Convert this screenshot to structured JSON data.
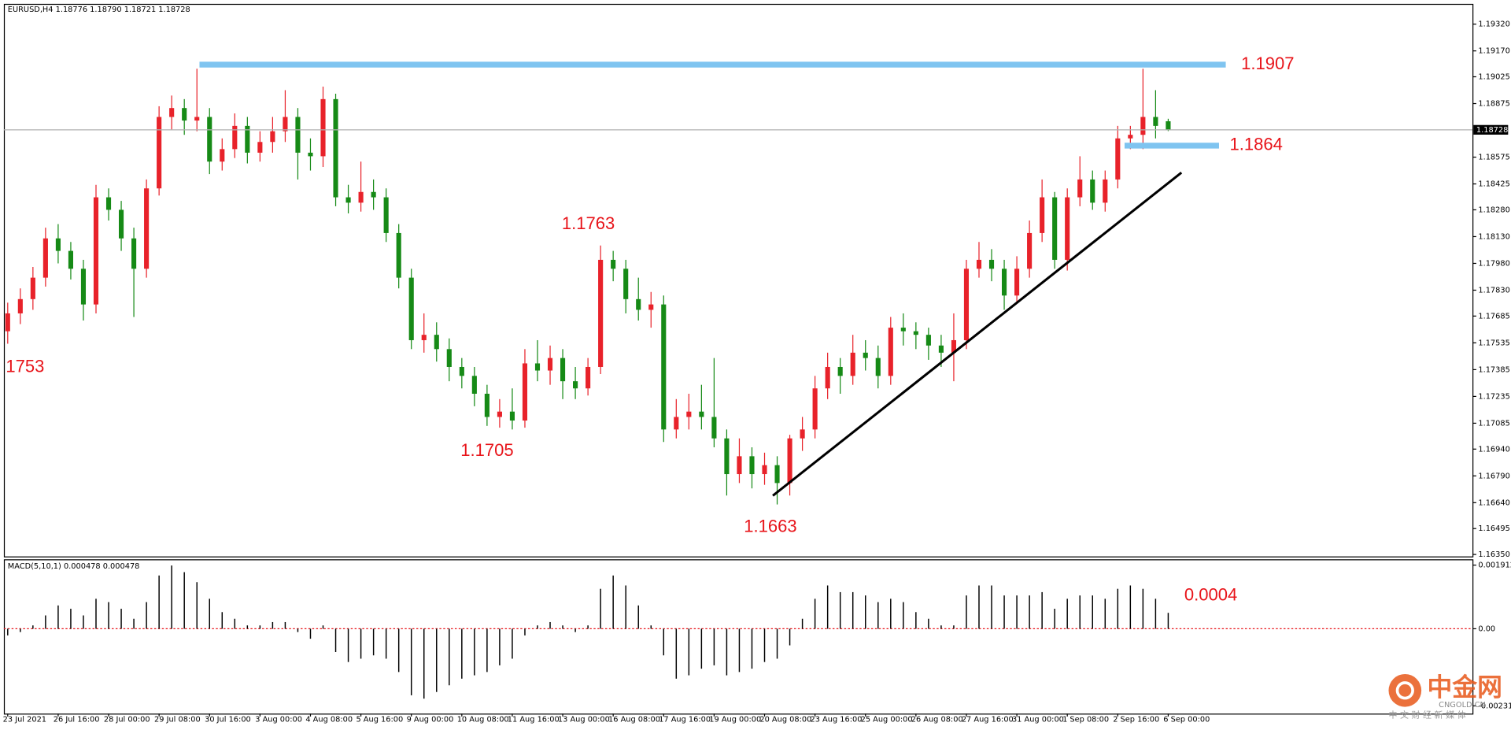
{
  "chart_data": [
    {
      "type": "candlestick",
      "title": "EURUSD,H4  1.18776 1.18790 1.18721 1.18728",
      "up_color": "#e8222a",
      "down_color": "#168a16",
      "categories": [
        "23 Jul 2021",
        null,
        null,
        null,
        "26 Jul 16:00",
        null,
        null,
        null,
        "28 Jul 00:00",
        null,
        null,
        null,
        "29 Jul 08:00",
        null,
        null,
        null,
        "30 Jul 16:00",
        null,
        null,
        null,
        "3 Aug 00:00",
        null,
        null,
        null,
        "4 Aug 08:00",
        null,
        null,
        null,
        "5 Aug 16:00",
        null,
        null,
        null,
        "9 Aug 00:00",
        null,
        null,
        null,
        "10 Aug 08:00",
        null,
        null,
        null,
        "11 Aug 16:00",
        null,
        null,
        null,
        "13 Aug 00:00",
        null,
        null,
        null,
        "16 Aug 08:00",
        null,
        null,
        null,
        "17 Aug 16:00",
        null,
        null,
        null,
        "19 Aug 00:00",
        null,
        null,
        null,
        "20 Aug 08:00",
        null,
        null,
        null,
        "23 Aug 16:00",
        null,
        null,
        null,
        "25 Aug 00:00",
        null,
        null,
        null,
        "26 Aug 08:00",
        null,
        null,
        null,
        "27 Aug 16:00",
        null,
        null,
        null,
        "31 Aug 00:00",
        null,
        null,
        null,
        "1 Sep 08:00",
        null,
        null,
        null,
        "2 Sep 16:00",
        null,
        null,
        null,
        "6 Sep 00:00"
      ],
      "open": [
        1.176,
        1.177,
        1.1778,
        1.179,
        1.1812,
        1.1805,
        1.1795,
        1.1775,
        1.1835,
        1.1828,
        1.1812,
        1.1795,
        1.184,
        1.188,
        1.1885,
        1.1878,
        1.188,
        1.1855,
        1.1862,
        1.1875,
        1.186,
        1.1866,
        1.1872,
        1.188,
        1.186,
        1.1858,
        1.189,
        1.1835,
        1.1832,
        1.1838,
        1.1835,
        1.1815,
        1.179,
        1.1755,
        1.1758,
        1.175,
        1.174,
        1.1735,
        1.1725,
        1.1712,
        1.1715,
        1.171,
        1.1742,
        1.1738,
        1.1745,
        1.1732,
        1.1728,
        1.174,
        1.18,
        1.1795,
        1.1778,
        1.1772,
        1.1775,
        1.1705,
        1.1712,
        1.1715,
        1.1712,
        1.17,
        1.168,
        1.169,
        1.168,
        1.1685,
        1.1675,
        1.17,
        1.1705,
        1.1728,
        1.174,
        1.1735,
        1.1748,
        1.1745,
        1.1735,
        1.1762,
        1.176,
        1.1758,
        1.1752,
        1.1748,
        1.1755,
        1.1795,
        1.18,
        1.1795,
        1.178,
        1.1795,
        1.1815,
        1.1835,
        1.18,
        1.1835,
        1.1845,
        1.1832,
        1.1845,
        1.1868,
        1.187,
        1.188,
        1.18776
      ],
      "high": [
        1.1776,
        1.1784,
        1.1796,
        1.1818,
        1.182,
        1.181,
        1.18,
        1.1842,
        1.184,
        1.1833,
        1.1818,
        1.1845,
        1.1886,
        1.1892,
        1.189,
        1.1907,
        1.1885,
        1.1868,
        1.1882,
        1.188,
        1.1872,
        1.188,
        1.1895,
        1.1885,
        1.1868,
        1.1897,
        1.1893,
        1.1842,
        1.1855,
        1.1845,
        1.184,
        1.182,
        1.1795,
        1.177,
        1.1765,
        1.1756,
        1.1745,
        1.174,
        1.173,
        1.1722,
        1.1728,
        1.175,
        1.1755,
        1.1752,
        1.175,
        1.174,
        1.1745,
        1.1808,
        1.1805,
        1.18,
        1.179,
        1.1782,
        1.178,
        1.1722,
        1.1725,
        1.173,
        1.1745,
        1.1705,
        1.17,
        1.1695,
        1.1692,
        1.169,
        1.1702,
        1.1712,
        1.1735,
        1.1748,
        1.1745,
        1.1758,
        1.1755,
        1.1752,
        1.1768,
        1.177,
        1.1765,
        1.1762,
        1.1758,
        1.177,
        1.18,
        1.181,
        1.1806,
        1.18,
        1.1802,
        1.1822,
        1.1845,
        1.1838,
        1.184,
        1.1858,
        1.185,
        1.185,
        1.1875,
        1.1875,
        1.1907,
        1.1895,
        1.1879
      ],
      "low": [
        1.1753,
        1.1764,
        1.1772,
        1.1785,
        1.1798,
        1.1789,
        1.1766,
        1.177,
        1.1822,
        1.1805,
        1.1768,
        1.179,
        1.1836,
        1.1873,
        1.187,
        1.1872,
        1.1848,
        1.185,
        1.1857,
        1.1854,
        1.1855,
        1.186,
        1.1866,
        1.1845,
        1.185,
        1.1852,
        1.183,
        1.1826,
        1.1827,
        1.1828,
        1.181,
        1.1784,
        1.175,
        1.1748,
        1.1743,
        1.1732,
        1.1728,
        1.1718,
        1.1707,
        1.1706,
        1.1705,
        1.1706,
        1.1732,
        1.173,
        1.1722,
        1.1722,
        1.1724,
        1.1736,
        1.1788,
        1.177,
        1.1766,
        1.1762,
        1.1698,
        1.17,
        1.1705,
        1.1705,
        1.1695,
        1.1668,
        1.1675,
        1.1672,
        1.1674,
        1.1663,
        1.1668,
        1.1693,
        1.17,
        1.1722,
        1.1725,
        1.173,
        1.1738,
        1.1728,
        1.173,
        1.1752,
        1.175,
        1.1744,
        1.174,
        1.1732,
        1.175,
        1.179,
        1.1788,
        1.1772,
        1.1776,
        1.179,
        1.181,
        1.1795,
        1.1794,
        1.183,
        1.1828,
        1.1827,
        1.184,
        1.1862,
        1.1862,
        1.1868,
        1.18721
      ],
      "close": [
        1.177,
        1.1778,
        1.179,
        1.1812,
        1.1805,
        1.1795,
        1.1775,
        1.1835,
        1.1828,
        1.1812,
        1.1795,
        1.184,
        1.188,
        1.1885,
        1.1878,
        1.188,
        1.1855,
        1.1862,
        1.1875,
        1.186,
        1.1866,
        1.1872,
        1.188,
        1.186,
        1.1858,
        1.189,
        1.1835,
        1.1832,
        1.1838,
        1.1835,
        1.1815,
        1.179,
        1.1755,
        1.1758,
        1.175,
        1.174,
        1.1735,
        1.1725,
        1.1712,
        1.1715,
        1.171,
        1.1742,
        1.1738,
        1.1745,
        1.1732,
        1.1728,
        1.174,
        1.18,
        1.1795,
        1.1778,
        1.1772,
        1.1775,
        1.1705,
        1.1712,
        1.1715,
        1.1712,
        1.17,
        1.168,
        1.169,
        1.168,
        1.1685,
        1.1675,
        1.17,
        1.1705,
        1.1728,
        1.174,
        1.1735,
        1.1748,
        1.1745,
        1.1735,
        1.1762,
        1.176,
        1.1758,
        1.1752,
        1.1748,
        1.1755,
        1.1795,
        1.18,
        1.1795,
        1.178,
        1.1795,
        1.1815,
        1.1835,
        1.18,
        1.1835,
        1.1845,
        1.1832,
        1.1845,
        1.1868,
        1.187,
        1.188,
        1.1875,
        1.18728
      ],
      "ylim": [
        1.16339,
        1.19428
      ],
      "yticks": [
        {
          "value": 1.1932,
          "label": "1.19320"
        },
        {
          "value": 1.1917,
          "label": "1.19170"
        },
        1.19025,
        1.18875,
        1.18575,
        1.18425,
        {
          "value": 1.1828,
          "label": "1.18280"
        },
        {
          "value": 1.1813,
          "label": "1.18130"
        },
        {
          "value": 1.1798,
          "label": "1.17980"
        },
        {
          "value": 1.1783,
          "label": "1.17830"
        },
        1.17685,
        1.17535,
        1.17385,
        1.17235,
        1.17085,
        {
          "value": 1.1694,
          "label": "1.16940"
        },
        {
          "value": 1.1679,
          "label": "1.16790"
        },
        {
          "value": 1.1664,
          "label": "1.16640"
        },
        1.16495,
        {
          "value": 1.1635,
          "label": "1.16350"
        }
      ],
      "current_price": 1.18728,
      "annotations": [
        "1.1907",
        "1.1864",
        "1.1763",
        "1.1705",
        "1.1663",
        "1753"
      ]
    },
    {
      "type": "histogram",
      "title": "MACD(5,10,1) 0.000478 0.000478",
      "color": "#000000",
      "values": [
        -0.0002,
        -0.0001,
        0.0001,
        0.0004,
        0.0007,
        0.0006,
        0.0004,
        0.0009,
        0.0008,
        0.0006,
        0.0003,
        0.0008,
        0.0016,
        0.0019,
        0.0017,
        0.0014,
        0.0009,
        0.0005,
        0.0003,
        0.0001,
        0.0001,
        0.0002,
        0.0002,
        -0.0001,
        -0.0003,
        0.0001,
        -0.0007,
        -0.001,
        -0.0009,
        -0.0008,
        -0.0009,
        -0.0013,
        -0.002,
        -0.0021,
        -0.0019,
        -0.0017,
        -0.0015,
        -0.0014,
        -0.0013,
        -0.0011,
        -0.0009,
        -0.0002,
        0.0001,
        0.0002,
        0.0001,
        -0.0001,
        0.0001,
        0.0012,
        0.0016,
        0.0013,
        0.0007,
        0.0001,
        -0.0008,
        -0.0015,
        -0.0014,
        -0.0012,
        -0.0011,
        -0.0014,
        -0.0013,
        -0.0012,
        -0.001,
        -0.0009,
        -0.0005,
        0.0003,
        0.0009,
        0.0013,
        0.0011,
        0.0011,
        0.001,
        0.0008,
        0.0009,
        0.0008,
        0.0005,
        0.0003,
        0.0001,
        0.0001,
        0.001,
        0.0013,
        0.0013,
        0.001,
        0.001,
        0.001,
        0.0011,
        0.0006,
        0.0009,
        0.001,
        0.001,
        0.0009,
        0.0012,
        0.0013,
        0.0012,
        0.0009,
        0.000478
      ],
      "ylim": [
        -0.00255,
        0.002086
      ],
      "yticks": [
        0.001912,
        {
          "value": 0,
          "label": "0.00"
        },
        -0.002317
      ],
      "annotations": [
        "0.0004"
      ]
    }
  ],
  "watermark": {
    "logo": "中金网",
    "site": "CNGOLD.CN",
    "slogan": "中 文 财 经 新 媒 体"
  }
}
